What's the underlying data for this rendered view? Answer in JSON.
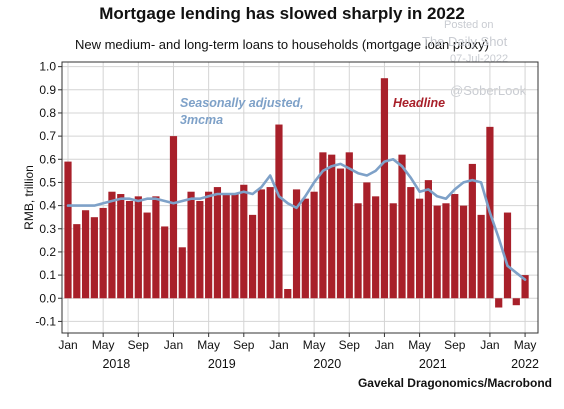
{
  "chart_data": {
    "type": "bar",
    "title": "Mortgage lending has slowed sharply in 2022",
    "subtitle": "New medium- and long-term loans to households (mortgage loan proxy)",
    "ylabel": "RMB, trillion",
    "xlabel": "",
    "ylim": [
      -0.15,
      1.02
    ],
    "yticks": [
      -0.1,
      0.0,
      0.1,
      0.2,
      0.3,
      0.4,
      0.5,
      0.6,
      0.7,
      0.8,
      0.9,
      1.0
    ],
    "ytick_labels": [
      "-0.1",
      "0.0",
      "0.1",
      "0.2",
      "0.3",
      "0.4",
      "0.5",
      "0.6",
      "0.7",
      "0.8",
      "0.9",
      "1.0"
    ],
    "x_month_ticks": [
      {
        "index": 0,
        "label": "Jan"
      },
      {
        "index": 4,
        "label": "May"
      },
      {
        "index": 8,
        "label": "Sep"
      },
      {
        "index": 12,
        "label": "Jan"
      },
      {
        "index": 16,
        "label": "May"
      },
      {
        "index": 20,
        "label": "Sep"
      },
      {
        "index": 24,
        "label": "Jan"
      },
      {
        "index": 28,
        "label": "May"
      },
      {
        "index": 32,
        "label": "Sep"
      },
      {
        "index": 36,
        "label": "Jan"
      },
      {
        "index": 40,
        "label": "May"
      },
      {
        "index": 44,
        "label": "Sep"
      },
      {
        "index": 48,
        "label": "Jan"
      },
      {
        "index": 52,
        "label": "May"
      }
    ],
    "x_year_labels": [
      {
        "center": 5.5,
        "label": "2018"
      },
      {
        "center": 17.5,
        "label": "2019"
      },
      {
        "center": 29.5,
        "label": "2020"
      },
      {
        "center": 41.5,
        "label": "2021"
      },
      {
        "center": 52.0,
        "label": "2022"
      }
    ],
    "x_start": "2018-01",
    "x_end": "2022-05",
    "grid": true,
    "series": [
      {
        "name": "Headline",
        "type": "bar",
        "color": "#a8202a",
        "values": [
          0.59,
          0.32,
          0.38,
          0.35,
          0.39,
          0.46,
          0.45,
          0.42,
          0.44,
          0.37,
          0.44,
          0.31,
          0.7,
          0.22,
          0.46,
          0.42,
          0.46,
          0.48,
          0.45,
          0.45,
          0.49,
          0.36,
          0.47,
          0.48,
          0.75,
          0.04,
          0.47,
          0.43,
          0.46,
          0.63,
          0.62,
          0.56,
          0.63,
          0.41,
          0.5,
          0.44,
          0.95,
          0.41,
          0.62,
          0.48,
          0.43,
          0.51,
          0.4,
          0.41,
          0.45,
          0.4,
          0.58,
          0.36,
          0.74,
          -0.04,
          0.37,
          -0.03,
          0.1
        ]
      },
      {
        "name": "Seasonally adjusted, 3mcma",
        "type": "line",
        "color": "#7ea1c8",
        "values": [
          0.4,
          0.4,
          0.4,
          0.4,
          0.41,
          0.42,
          0.43,
          0.43,
          0.42,
          0.43,
          0.43,
          0.42,
          0.41,
          0.42,
          0.43,
          0.43,
          0.44,
          0.45,
          0.45,
          0.45,
          0.46,
          0.45,
          0.48,
          0.53,
          0.44,
          0.41,
          0.39,
          0.44,
          0.5,
          0.55,
          0.57,
          0.58,
          0.56,
          0.54,
          0.53,
          0.55,
          0.59,
          0.6,
          0.57,
          0.52,
          0.46,
          0.47,
          0.44,
          0.43,
          0.47,
          0.5,
          0.51,
          0.5,
          0.37,
          0.26,
          0.14,
          0.11,
          0.08
        ]
      }
    ],
    "annotations": [
      {
        "text_lines": [
          "Seasonally adjusted,",
          "3mcma"
        ],
        "series": "Seasonally adjusted, 3mcma"
      },
      {
        "text_lines": [
          "Headline"
        ],
        "series": "Headline"
      }
    ]
  },
  "watermark": {
    "posted": "Posted on",
    "site": "The Daily Shot",
    "date": "07-Jul-2022",
    "handle": "@SoberLook"
  },
  "source": "Gavekal Dragonomics/Macrobond"
}
